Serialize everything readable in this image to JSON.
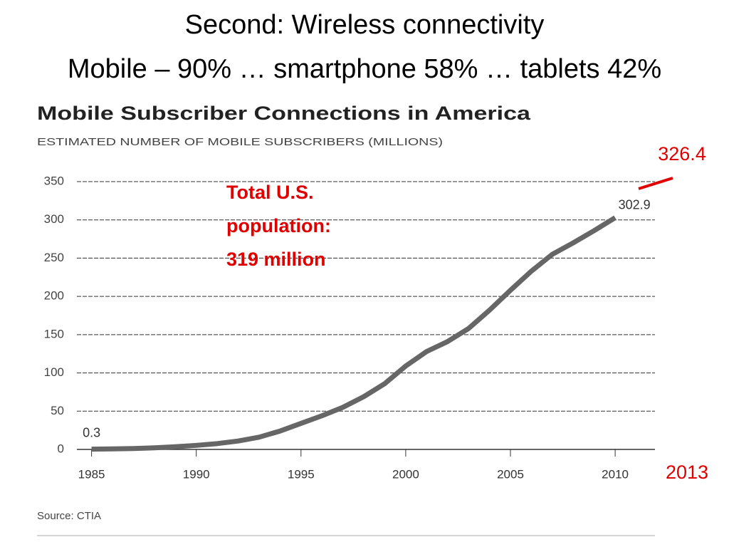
{
  "slide_title": [
    "Second: Wireless connectivity",
    "Mobile – 90% … smartphone 58% … tablets 42%"
  ],
  "chart_data": {
    "type": "line",
    "title": "Mobile Subscriber Connections in America",
    "subtitle": "ESTIMATED NUMBER OF MOBILE SUBSCRIBERS (MILLIONS)",
    "x": [
      1985,
      1986,
      1987,
      1988,
      1989,
      1990,
      1991,
      1992,
      1993,
      1994,
      1995,
      1996,
      1997,
      1998,
      1999,
      2000,
      2001,
      2002,
      2003,
      2004,
      2005,
      2006,
      2007,
      2008,
      2009,
      2010
    ],
    "values": [
      0.3,
      0.7,
      1.2,
      2.1,
      3.5,
      5.3,
      7.6,
      11,
      16,
      24,
      34,
      44,
      55,
      69,
      86,
      109,
      128,
      141,
      158,
      182,
      208,
      233,
      255,
      270,
      286,
      302.9
    ],
    "color": "#666666",
    "xlim": [
      1984.3,
      2011.9
    ],
    "ylim": [
      0,
      350
    ],
    "xticks": [
      1985,
      1990,
      1995,
      2000,
      2005,
      2010
    ],
    "yticks": [
      0,
      50,
      100,
      150,
      200,
      250,
      300,
      350
    ],
    "grid": true,
    "annotation": [
      "Total U.S.",
      "population:",
      "319 million"
    ],
    "annotation_color": "#e00000",
    "projection": {
      "x": 2013,
      "value": 326.4
    },
    "source": "Source: CTIA"
  }
}
